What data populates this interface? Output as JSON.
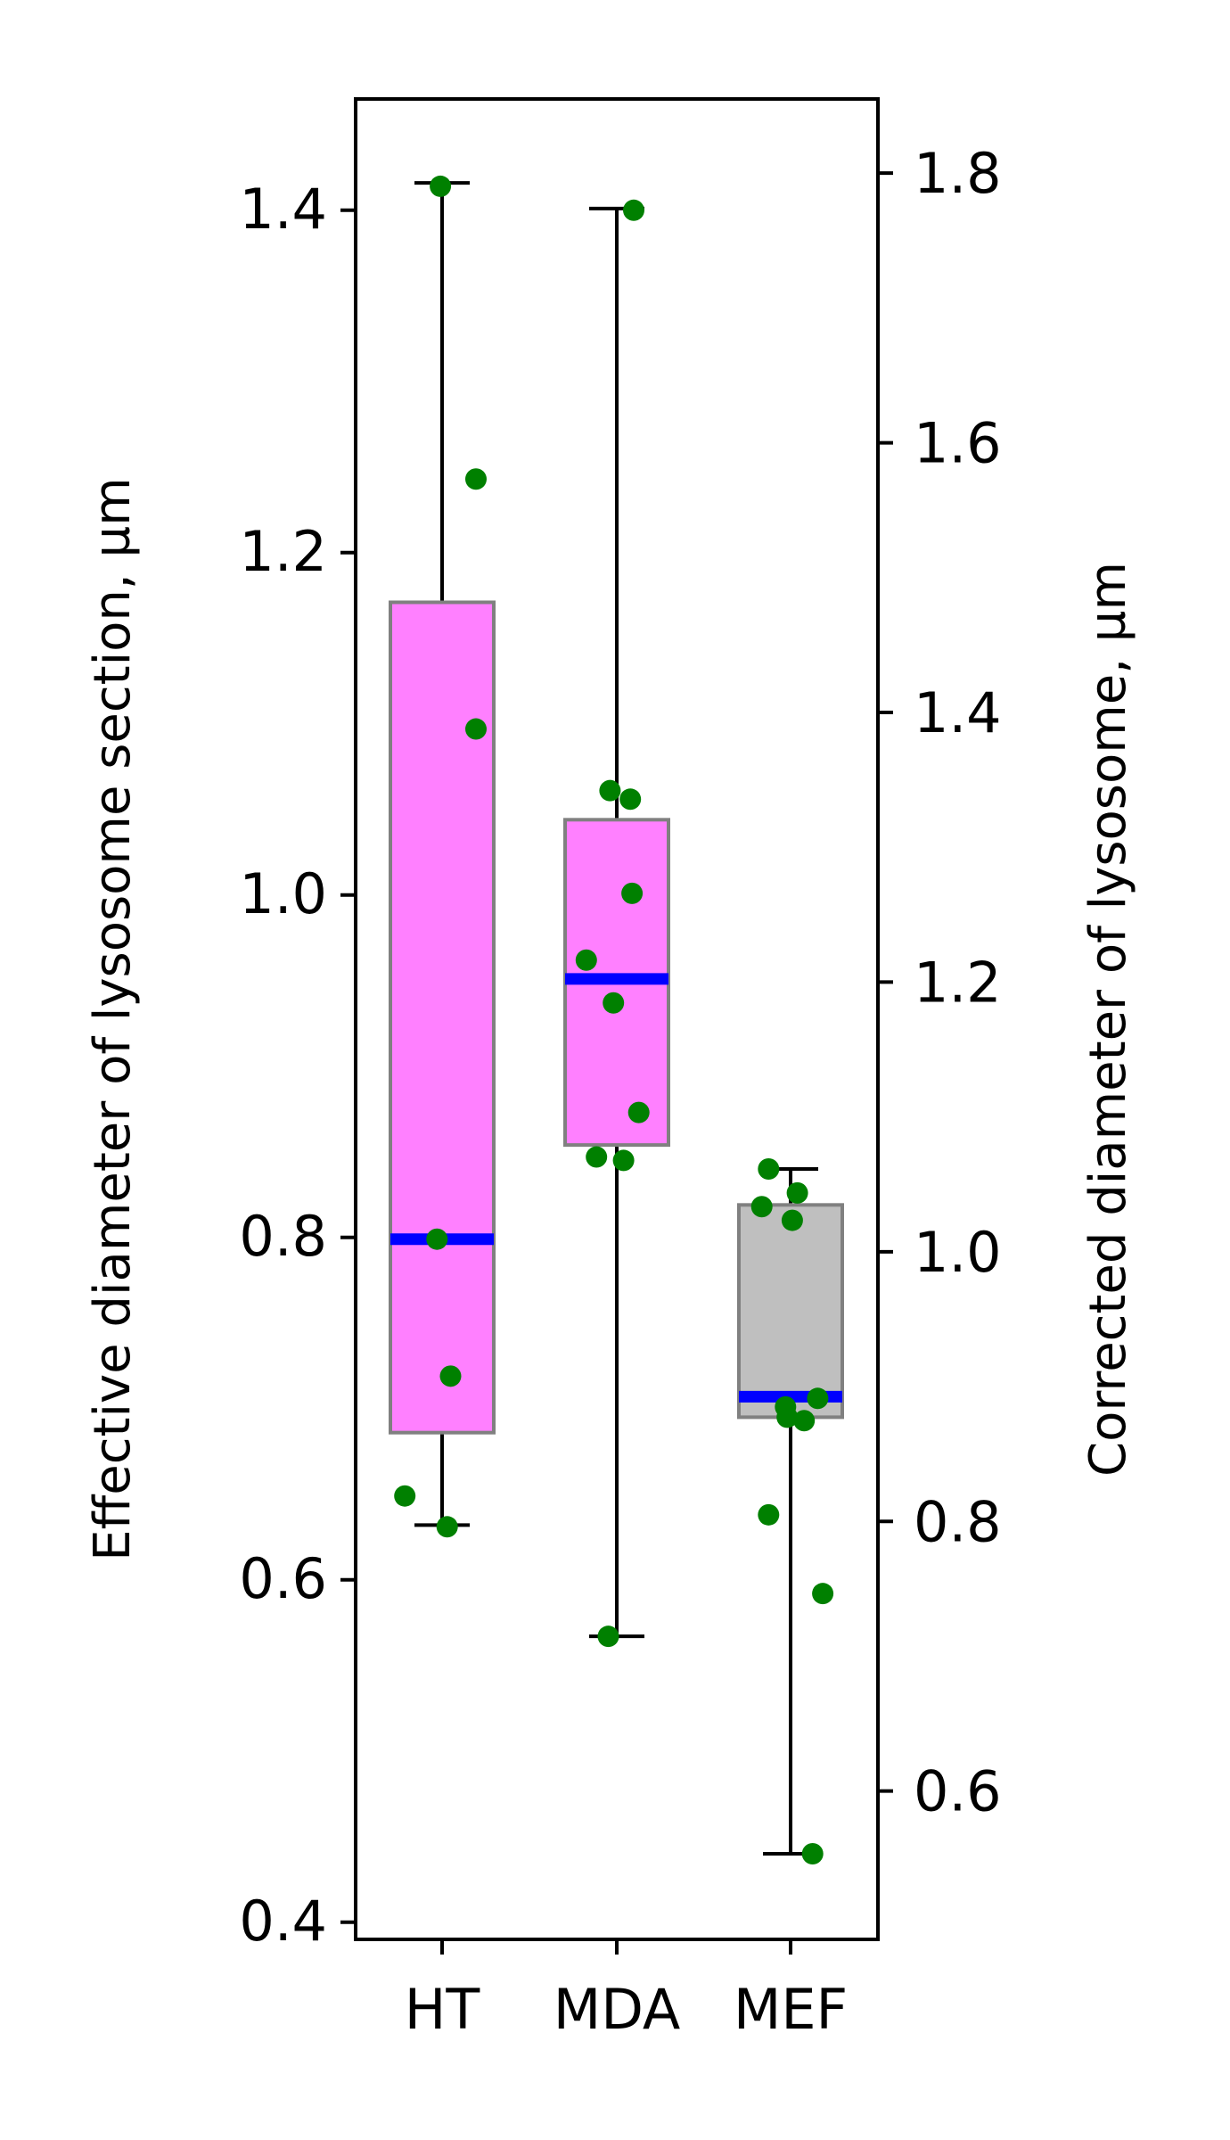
{
  "chart_data": {
    "type": "box",
    "categories": [
      "HT",
      "MDA",
      "MEF"
    ],
    "ylabel": "Effective diameter of lysosome section, µm",
    "ylabel_right": "Corrected diameter of lysosome, µm",
    "ylim": [
      0.39,
      1.465
    ],
    "yticks": [
      0.4,
      0.6,
      0.8,
      1.0,
      1.2,
      1.4
    ],
    "ytick_labels": [
      "0.4",
      "0.6",
      "0.8",
      "1.0",
      "1.2",
      "1.4"
    ],
    "right_ylim": [
      0.49,
      1.855
    ],
    "right_yticks": [
      0.6,
      0.8,
      1.0,
      1.2,
      1.4,
      1.6,
      1.8
    ],
    "right_ytick_labels": [
      "0.6",
      "0.8",
      "1.0",
      "1.2",
      "1.4",
      "1.6",
      "1.8"
    ],
    "boxes": [
      {
        "category": "HT",
        "whisker_low": 0.632,
        "q1": 0.686,
        "median": 0.799,
        "q3": 1.171,
        "whisker_high": 1.416,
        "color": "#ff80ff"
      },
      {
        "category": "MDA",
        "whisker_low": 0.567,
        "q1": 0.854,
        "median": 0.951,
        "q3": 1.044,
        "whisker_high": 1.401,
        "color": "#ff80ff"
      },
      {
        "category": "MEF",
        "whisker_low": 0.44,
        "q1": 0.695,
        "median": 0.707,
        "q3": 0.819,
        "whisker_high": 0.84,
        "color": "#bfbfbf"
      }
    ],
    "points": [
      {
        "category": "HT",
        "values": [
          1.414,
          1.243,
          1.097,
          0.799,
          0.719,
          0.649,
          0.631
        ],
        "offsets": [
          -0.01,
          0.2,
          0.2,
          -0.03,
          0.05,
          -0.22,
          0.03
        ]
      },
      {
        "category": "MDA",
        "values": [
          1.4,
          1.061,
          1.056,
          1.001,
          0.962,
          0.937,
          0.873,
          0.847,
          0.845,
          0.567
        ],
        "offsets": [
          0.1,
          -0.04,
          0.08,
          0.09,
          -0.18,
          -0.02,
          0.13,
          -0.12,
          0.04,
          -0.05
        ]
      },
      {
        "category": "MEF",
        "values": [
          0.84,
          0.826,
          0.818,
          0.81,
          0.706,
          0.701,
          0.695,
          0.693,
          0.638,
          0.592,
          0.44
        ],
        "offsets": [
          -0.13,
          0.04,
          -0.17,
          0.01,
          0.16,
          -0.03,
          -0.02,
          0.08,
          -0.13,
          0.19,
          0.13
        ]
      }
    ],
    "median_color": "#0000ff",
    "point_color": "#008000",
    "box_edge_color": "#808080",
    "grid": false,
    "legend": "none"
  }
}
